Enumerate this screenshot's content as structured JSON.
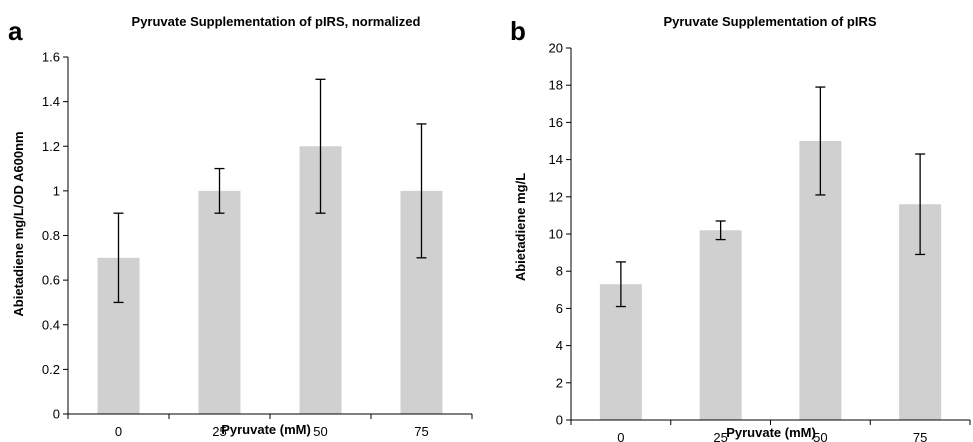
{
  "colors": {
    "bar": "#d0d0d0",
    "axis": "#000000",
    "errorbar": "#000000"
  },
  "chart_data": [
    {
      "panel": "a",
      "type": "bar",
      "title": "Pyruvate Supplementation of pIRS, normalized",
      "xlabel": "Pyruvate (mM)",
      "ylabel": "Abietadiene mg/L/OD A600nm",
      "categories": [
        "0",
        "25",
        "50",
        "75"
      ],
      "values": [
        0.7,
        1.0,
        1.2,
        1.0
      ],
      "error_low": [
        0.5,
        0.9,
        0.9,
        0.7
      ],
      "error_high": [
        0.9,
        1.1,
        1.5,
        1.3
      ],
      "ylim": [
        0,
        1.6
      ],
      "yticks": [
        "0",
        "0.2",
        "0.4",
        "0.6",
        "0.8",
        "1",
        "1.2",
        "1.4",
        "1.6"
      ],
      "grid": false,
      "legend": "none"
    },
    {
      "panel": "b",
      "type": "bar",
      "title": "Pyruvate Supplementation of pIRS",
      "xlabel": "Pyruvate (mM)",
      "ylabel": "Abietadiene mg/L",
      "categories": [
        "0",
        "25",
        "50",
        "75"
      ],
      "values": [
        7.3,
        10.2,
        15.0,
        11.6
      ],
      "error_low": [
        6.1,
        9.7,
        12.1,
        8.9
      ],
      "error_high": [
        8.5,
        10.7,
        17.9,
        14.3
      ],
      "ylim": [
        0,
        20
      ],
      "yticks": [
        "0",
        "2",
        "4",
        "6",
        "8",
        "10",
        "12",
        "14",
        "16",
        "18",
        "20"
      ],
      "grid": false,
      "legend": "none"
    }
  ]
}
